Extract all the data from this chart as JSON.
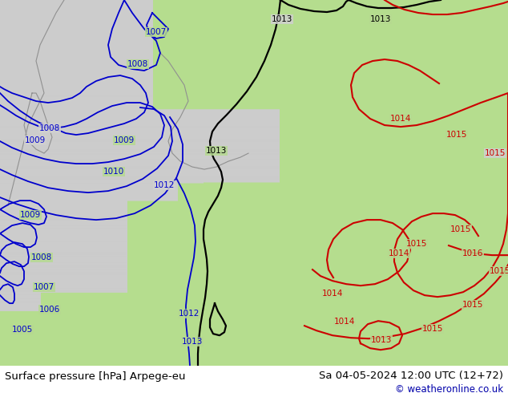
{
  "title_left": "Surface pressure [hPa] Arpege-eu",
  "title_right": "Sa 04-05-2024 12:00 UTC (12+72)",
  "copyright": "© weatheronline.co.uk",
  "bg_land": "#b5d990",
  "bg_sea": "#d0d0d0",
  "bg_bottom": "#d8d8d8",
  "blue": "#0000cc",
  "red": "#cc0000",
  "black": "#000000",
  "gray_coast": "#808080",
  "label_fs": 7.5,
  "title_fs": 9.5
}
